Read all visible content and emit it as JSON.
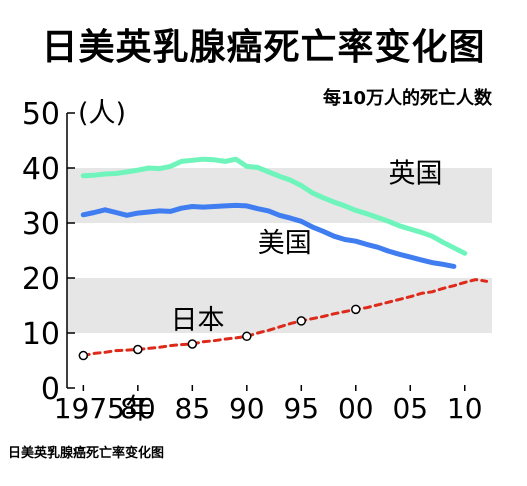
{
  "title": "日美英乳腺癌死亡率变化图",
  "footer": "日美英乳腺癌死亡率变化图",
  "chart_data": {
    "type": "line",
    "title": "日美英乳腺癌死亡率变化图",
    "subtitle": "每10万人的死亡人数",
    "ylabel": "(人)",
    "ylim": [
      0,
      50
    ],
    "yticks": [
      "0",
      "10",
      "20",
      "30",
      "40",
      "50"
    ],
    "xlim": [
      1973.5,
      2012.5
    ],
    "xtick_values": [
      1975,
      1980,
      1985,
      1990,
      1995,
      2000,
      2005,
      2010
    ],
    "xtick_labels": [
      "1975年",
      "80",
      "85",
      "90",
      "95",
      "00",
      "05",
      "10"
    ],
    "bands": [
      [
        10,
        20
      ],
      [
        30,
        40
      ]
    ],
    "grid": false,
    "series": [
      {
        "name": "英国",
        "color": "#6ff5bb",
        "style": "solid",
        "x": [
          1975,
          1976,
          1977,
          1978,
          1979,
          1980,
          1981,
          1982,
          1983,
          1984,
          1985,
          1986,
          1987,
          1988,
          1989,
          1990,
          1991,
          1992,
          1993,
          1994,
          1995,
          1996,
          1997,
          1998,
          1999,
          2000,
          2001,
          2002,
          2003,
          2004,
          2005,
          2006,
          2007,
          2008,
          2009,
          2010
        ],
        "values": [
          38.6,
          38.7,
          38.9,
          39.0,
          39.3,
          39.6,
          40.0,
          39.9,
          40.3,
          41.2,
          41.4,
          41.6,
          41.5,
          41.2,
          41.6,
          40.3,
          40.1,
          39.3,
          38.5,
          37.8,
          36.8,
          35.5,
          34.6,
          33.8,
          33.1,
          32.3,
          31.7,
          31.0,
          30.3,
          29.5,
          28.9,
          28.3,
          27.6,
          26.5,
          25.5,
          24.5
        ]
      },
      {
        "name": "美国",
        "color": "#3f7df0",
        "style": "solid",
        "x": [
          1975,
          1976,
          1977,
          1978,
          1979,
          1980,
          1981,
          1982,
          1983,
          1984,
          1985,
          1986,
          1987,
          1988,
          1989,
          1990,
          1991,
          1992,
          1993,
          1994,
          1995,
          1996,
          1997,
          1998,
          1999,
          2000,
          2001,
          2002,
          2003,
          2004,
          2005,
          2006,
          2007,
          2008,
          2009
        ],
        "values": [
          31.5,
          31.9,
          32.4,
          31.9,
          31.4,
          31.8,
          32.0,
          32.2,
          32.1,
          32.7,
          33.0,
          32.9,
          33.0,
          33.1,
          33.2,
          33.1,
          32.6,
          32.2,
          31.4,
          30.9,
          30.3,
          29.3,
          28.5,
          27.6,
          27.0,
          26.7,
          26.1,
          25.6,
          24.9,
          24.3,
          23.8,
          23.3,
          22.8,
          22.5,
          22.1
        ]
      },
      {
        "name": "日本",
        "color": "#dd2a1a",
        "style": "dashed",
        "x": [
          1975,
          1976,
          1977,
          1978,
          1979,
          1980,
          1981,
          1982,
          1983,
          1984,
          1985,
          1986,
          1987,
          1988,
          1989,
          1990,
          1991,
          1992,
          1993,
          1994,
          1995,
          1996,
          1997,
          1998,
          1999,
          2000,
          2001,
          2002,
          2003,
          2004,
          2005,
          2006,
          2007,
          2008,
          2009,
          2010,
          2011,
          2012
        ],
        "values": [
          5.9,
          6.3,
          6.5,
          6.8,
          6.9,
          7.0,
          7.2,
          7.4,
          7.7,
          7.9,
          8.0,
          8.4,
          8.6,
          8.9,
          9.1,
          9.4,
          10.0,
          10.5,
          11.1,
          11.7,
          12.2,
          12.6,
          13.0,
          13.5,
          13.9,
          14.3,
          14.6,
          15.1,
          15.6,
          16.1,
          16.6,
          17.2,
          17.5,
          18.1,
          18.6,
          19.2,
          19.7,
          19.4
        ]
      }
    ],
    "markers": {
      "series": "日本",
      "x": [
        1975,
        1980,
        1985,
        1990,
        1995,
        2000
      ],
      "values": [
        5.9,
        7.0,
        8.0,
        9.4,
        12.2,
        14.3
      ]
    }
  }
}
